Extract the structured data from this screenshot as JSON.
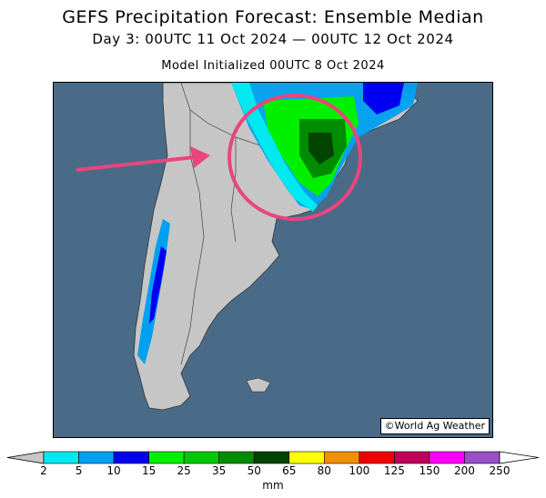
{
  "header": {
    "title": "GEFS Precipitation Forecast: Ensemble Median",
    "subtitle": "Day 3: 00UTC 11 Oct 2024 — 00UTC 12 Oct 2024",
    "init": "Model Initialized 00UTC 8 Oct 2024"
  },
  "map": {
    "credit": "©World Ag Weather",
    "ocean_color": "#4a6b88",
    "land_color": "#c6c6c6",
    "annotations": {
      "circle_color": "#e8457f",
      "arrow_color": "#e8457f"
    }
  },
  "legend": {
    "unit": "mm",
    "ticks": [
      "2",
      "5",
      "10",
      "15",
      "25",
      "35",
      "50",
      "65",
      "80",
      "100",
      "125",
      "150",
      "200",
      "250"
    ],
    "colors": [
      "#00e8f0",
      "#00a0f0",
      "#0000f0",
      "#00f000",
      "#00c800",
      "#008c00",
      "#004400",
      "#ffff00",
      "#f09000",
      "#f00000",
      "#c0005a",
      "#ff00ff",
      "#9a4ec8"
    ],
    "low_arrow_color": "#c6c6c6",
    "high_arrow_color": "#ffffff"
  }
}
